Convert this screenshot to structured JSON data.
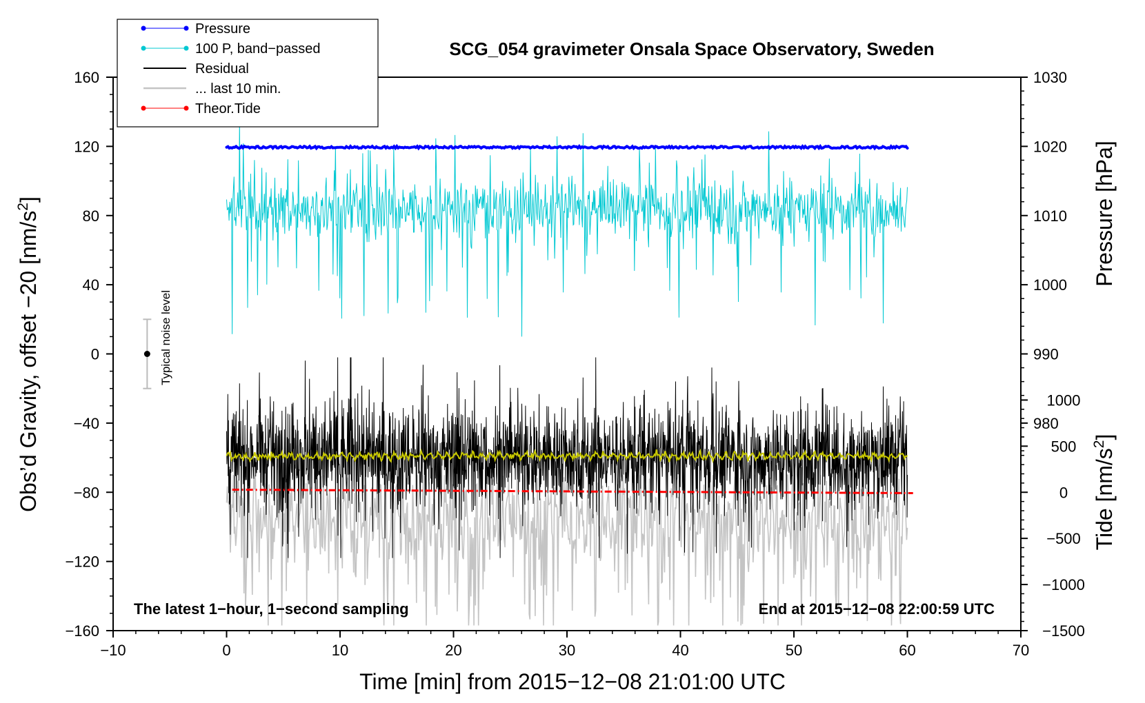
{
  "chart_data": {
    "type": "line",
    "title": "SCG_054 gravimeter Onsala Space Observatory, Sweden",
    "xlabel": "Time [min] from 2015−12−08 21:01:00 UTC",
    "ylabel_left": "Obs’d Gravity, offset −20 [nm/s2]",
    "ylabel_left_main": "Obs’d Gravity, offset −20 [nm/s",
    "ylabel_left_sup": "2",
    "ylabel_left_end": "]",
    "ylabel_right_top": "Pressure [hPa]",
    "ylabel_right_bottom_main": "Tide [nm/s",
    "ylabel_right_bottom_sup": "2",
    "ylabel_right_bottom_end": "]",
    "xlim": [
      -10,
      70
    ],
    "ylim_left": [
      -160,
      160
    ],
    "xticks": [
      -10,
      0,
      10,
      20,
      30,
      40,
      50,
      60,
      70
    ],
    "xtick_labels": [
      "−10",
      "0",
      "10",
      "20",
      "30",
      "40",
      "50",
      "60",
      "70"
    ],
    "yticks_left": [
      160,
      120,
      80,
      40,
      0,
      -40,
      -80,
      -120,
      -160
    ],
    "ytick_labels_left": [
      "160",
      "120",
      "80",
      "40",
      "0",
      "−40",
      "−80",
      "−120",
      "−160"
    ],
    "pressure_axis": {
      "ticks": [
        1030,
        1020,
        1010,
        1000,
        990,
        980
      ],
      "tick_labels": [
        "1030",
        "1020",
        "1010",
        "1000",
        "990",
        "980"
      ],
      "map": {
        "hpa_ref": 1020,
        "left_ref": 120,
        "left_per_hpa": 4.0
      }
    },
    "tide_axis": {
      "ticks": [
        1000,
        500,
        0,
        -500,
        -1000,
        -1500
      ],
      "tick_labels": [
        "1000",
        "500",
        "0",
        "−500",
        "−1000",
        "−1500"
      ],
      "map": {
        "tide_ref": 0,
        "left_ref": -80,
        "left_per_unit": 0.05333
      }
    },
    "series": [
      {
        "name": "Pressure",
        "color": "#0000ff",
        "style": "line-dots",
        "approx_level_left": 119.5,
        "x_range": [
          0,
          60
        ]
      },
      {
        "name": "100 P, band−passed",
        "color": "#00c8d2",
        "style": "line-dots",
        "approx_center_left": 84,
        "range_left": [
          10,
          135
        ],
        "x_range": [
          0,
          60
        ]
      },
      {
        "name": "Residual",
        "color": "#000000",
        "style": "line",
        "approx_center_left": -60,
        "range_left": [
          -118,
          -2
        ],
        "x_range": [
          0,
          60
        ]
      },
      {
        "name": "... last 10 min.",
        "color": "#c4c4c4",
        "style": "line",
        "approx_center_left": -95,
        "range_left": [
          -157,
          -70
        ],
        "x_range": [
          0,
          60
        ]
      },
      {
        "name": "Theor.Tide",
        "color": "#ff0000",
        "style": "line-dots",
        "start_left": -78.5,
        "end_left": -80.5,
        "x_range": [
          0.5,
          60.5
        ]
      },
      {
        "name": "smoothed residual",
        "color": "#c8c800",
        "style": "line",
        "approx_center_left": -59,
        "x_range": [
          0,
          60
        ]
      }
    ],
    "annotations": {
      "noise_label": "Typical noise level",
      "noise_bar": {
        "x": -7,
        "center": 0,
        "half_range": 20
      },
      "bottom_left": "The latest 1−hour, 1−second sampling",
      "bottom_right": "End at 2015−12−08 22:00:59 UTC"
    },
    "legend": {
      "location": "top-left",
      "entries": [
        {
          "label": "Pressure",
          "color": "#0000ff",
          "marker": "dot"
        },
        {
          "label": "100 P, band−passed",
          "color": "#00c8d2",
          "marker": "dot"
        },
        {
          "label": "Residual",
          "color": "#000000",
          "marker": "none"
        },
        {
          "label": "... last 10 min.",
          "color": "#c4c4c4",
          "marker": "none"
        },
        {
          "label": "Theor.Tide",
          "color": "#ff0000",
          "marker": "dot"
        }
      ]
    }
  }
}
